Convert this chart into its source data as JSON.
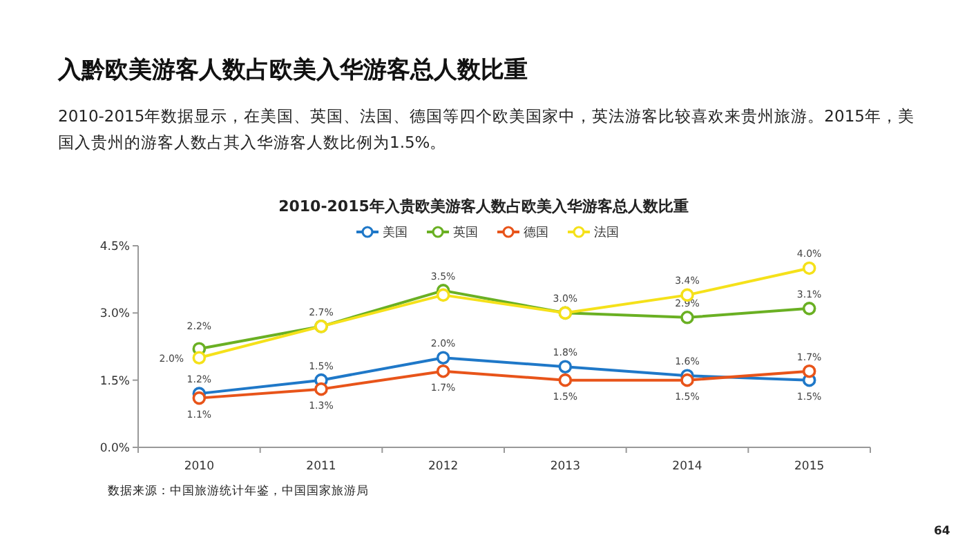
{
  "chart_data": {
    "type": "line",
    "title": "入黔欧美游客人数占欧美入华游客总人数比重",
    "subtitle": "2010-2015年数据显示，在美国、英国、法国、德国等四个欧美国家中，英法游客比较喜欢来贵州旅游。2015年，美国入贵州的游客人数占其入华游客人数比例为1.5%。",
    "annotations": [
      "2010-2015年入贵欧美游客人数占欧美入华游客总人数比重",
      "数据来源：中国旅游统计年鉴，中国国家旅游局",
      "64"
    ],
    "categories": [
      "2010",
      "2011",
      "2012",
      "2013",
      "2014",
      "2015"
    ],
    "series": [
      {
        "name": "美国",
        "color": "#1f78c8",
        "values": [
          1.2,
          1.5,
          2.0,
          1.8,
          1.6,
          1.5
        ],
        "value_labels": [
          "1.2%",
          "1.5%",
          "2.0%",
          "1.8%",
          "1.6%",
          "1.5%"
        ]
      },
      {
        "name": "英国",
        "color": "#6ab023",
        "values": [
          2.2,
          2.7,
          3.5,
          3.0,
          2.9,
          3.1
        ],
        "value_labels": [
          "2.2%",
          "2.7%",
          "3.5%",
          "3.0%",
          "2.9%",
          "3.1%"
        ]
      },
      {
        "name": "德国",
        "color": "#e8541a",
        "values": [
          1.1,
          1.3,
          1.7,
          1.5,
          1.5,
          1.7
        ],
        "value_labels": [
          "1.1%",
          "1.3%",
          "1.7%",
          "1.5%",
          "1.5%",
          "1.7%"
        ]
      },
      {
        "name": "法国",
        "color": "#f5e11a",
        "values": [
          2.0,
          2.7,
          3.4,
          3.0,
          3.4,
          4.0
        ],
        "value_labels": [
          "2.0%",
          null,
          null,
          null,
          "3.4%",
          "4.0%"
        ]
      }
    ],
    "ylim": [
      0,
      4.5
    ],
    "yticks": [
      {
        "value": 0,
        "label": "0.0%"
      },
      {
        "value": 1.5,
        "label": "1.5%"
      },
      {
        "value": 3,
        "label": "3.0%"
      },
      {
        "value": 4.5,
        "label": "4.5%"
      }
    ],
    "legend": "top",
    "marker": "circle",
    "line_style": "solid",
    "grid": false
  }
}
